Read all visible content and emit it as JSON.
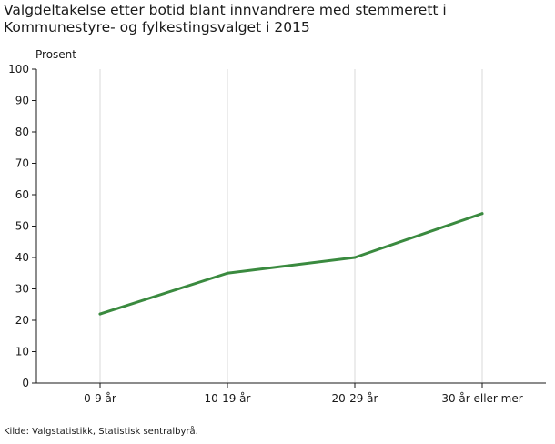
{
  "title_lines": [
    "Valgdeltakelse etter botid blant innvandrere med stemmerett i",
    "Kommunestyre- og fylkestingsvalget i 2015"
  ],
  "source": "Kilde: Valgstatistikk, Statistisk sentralbyrå.",
  "chart_data": {
    "type": "line",
    "title": "Valgdeltakelse etter botid blant innvandrere med stemmerett i Kommunestyre- og fylkestingsvalget i 2015",
    "ylabel": "Prosent",
    "xlabel": "",
    "categories": [
      "0-9 år",
      "10-19 år",
      "20-29 år",
      "30 år eller mer"
    ],
    "series": [
      {
        "values": [
          22,
          35,
          40,
          54
        ],
        "color": "#3a8a3f"
      }
    ],
    "ylim": [
      0,
      100
    ],
    "yticks": [
      0,
      10,
      20,
      30,
      40,
      50,
      60,
      70,
      80,
      90,
      100
    ],
    "grid": "vertical",
    "legend": "none"
  }
}
